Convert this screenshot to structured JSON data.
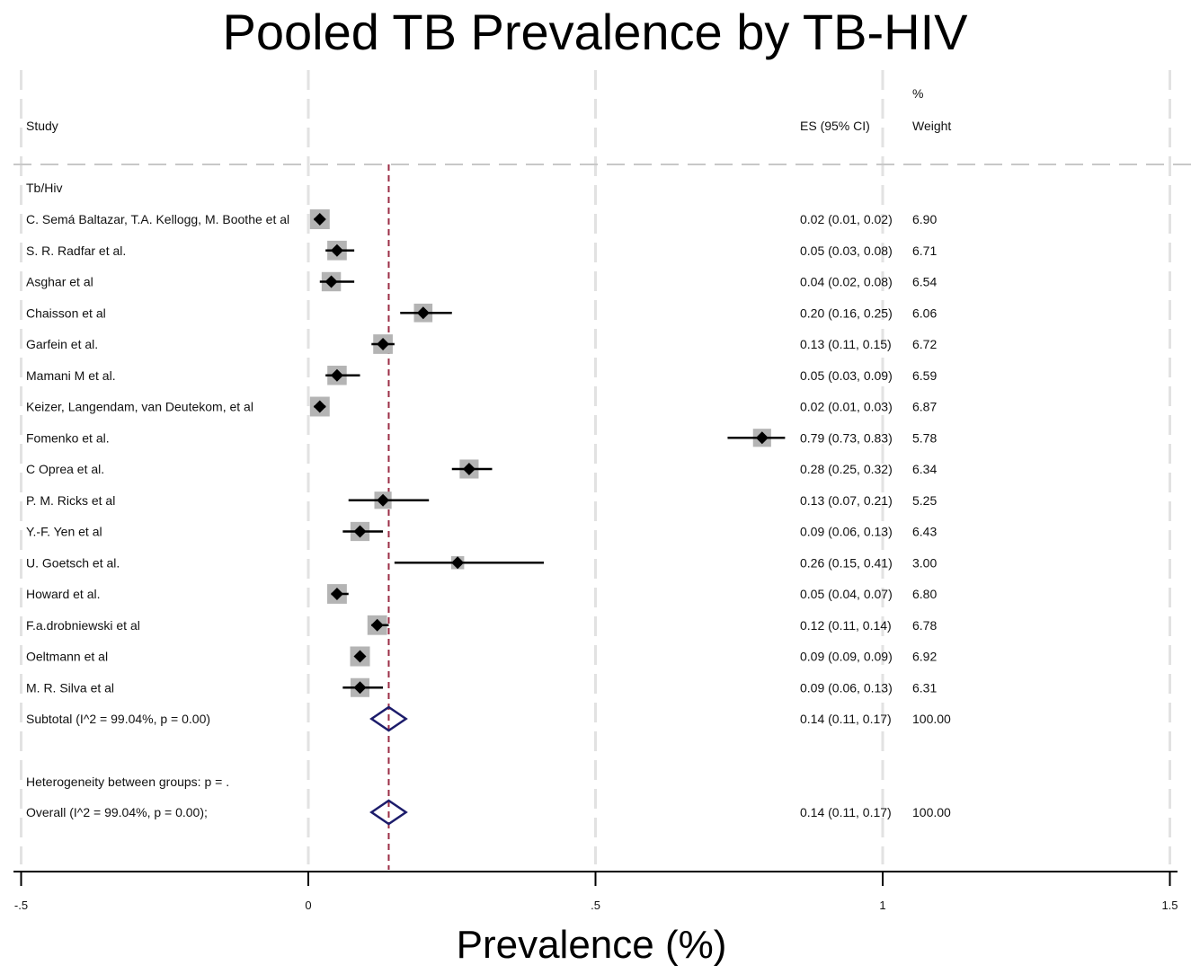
{
  "chart_data": {
    "type": "forest",
    "title": "Pooled TB Prevalence by TB-HIV",
    "xlabel": "Prevalence (%)",
    "xlim": [
      -0.5,
      1.5
    ],
    "xticks": [
      -0.5,
      0,
      0.5,
      1,
      1.5
    ],
    "xtick_labels": [
      "-.5",
      "0",
      ".5",
      "1",
      "1.5"
    ],
    "grid": true,
    "reference_line": 0.14,
    "headers": {
      "study": "Study",
      "es": "ES (95% CI)",
      "pct": "%",
      "weight": "Weight"
    },
    "group_label": "Tb/Hiv",
    "studies": [
      {
        "name": "C. Semá Baltazar, T.A. Kellogg, M. Boothe et al",
        "es": 0.02,
        "lo": 0.01,
        "hi": 0.02,
        "es_text": "0.02 (0.01, 0.02)",
        "weight": "6.90"
      },
      {
        "name": "S. R. Radfar et al.",
        "es": 0.05,
        "lo": 0.03,
        "hi": 0.08,
        "es_text": "0.05 (0.03, 0.08)",
        "weight": "6.71"
      },
      {
        "name": "Asghar et al",
        "es": 0.04,
        "lo": 0.02,
        "hi": 0.08,
        "es_text": "0.04 (0.02, 0.08)",
        "weight": "6.54"
      },
      {
        "name": "Chaisson et al",
        "es": 0.2,
        "lo": 0.16,
        "hi": 0.25,
        "es_text": "0.20 (0.16, 0.25)",
        "weight": "6.06"
      },
      {
        "name": "Garfein et al.",
        "es": 0.13,
        "lo": 0.11,
        "hi": 0.15,
        "es_text": "0.13 (0.11, 0.15)",
        "weight": "6.72"
      },
      {
        "name": "Mamani M et al.",
        "es": 0.05,
        "lo": 0.03,
        "hi": 0.09,
        "es_text": "0.05 (0.03, 0.09)",
        "weight": "6.59"
      },
      {
        "name": "Keizer, Langendam, van Deutekom, et al",
        "es": 0.02,
        "lo": 0.01,
        "hi": 0.03,
        "es_text": "0.02 (0.01, 0.03)",
        "weight": "6.87"
      },
      {
        "name": "Fomenko et al.",
        "es": 0.79,
        "lo": 0.73,
        "hi": 0.83,
        "es_text": "0.79 (0.73, 0.83)",
        "weight": "5.78"
      },
      {
        "name": "C Oprea et al.",
        "es": 0.28,
        "lo": 0.25,
        "hi": 0.32,
        "es_text": "0.28 (0.25, 0.32)",
        "weight": "6.34"
      },
      {
        "name": "P. M. Ricks et al",
        "es": 0.13,
        "lo": 0.07,
        "hi": 0.21,
        "es_text": "0.13 (0.07, 0.21)",
        "weight": "5.25"
      },
      {
        "name": "Y.-F. Yen et al",
        "es": 0.09,
        "lo": 0.06,
        "hi": 0.13,
        "es_text": "0.09 (0.06, 0.13)",
        "weight": "6.43"
      },
      {
        "name": "U. Goetsch et al.",
        "es": 0.26,
        "lo": 0.15,
        "hi": 0.41,
        "es_text": "0.26 (0.15, 0.41)",
        "weight": "3.00"
      },
      {
        "name": "Howard et al.",
        "es": 0.05,
        "lo": 0.04,
        "hi": 0.07,
        "es_text": "0.05 (0.04, 0.07)",
        "weight": "6.80"
      },
      {
        "name": "F.a.drobniewski et al",
        "es": 0.12,
        "lo": 0.11,
        "hi": 0.14,
        "es_text": "0.12 (0.11, 0.14)",
        "weight": "6.78"
      },
      {
        "name": "Oeltmann et al",
        "es": 0.09,
        "lo": 0.09,
        "hi": 0.09,
        "es_text": "0.09 (0.09, 0.09)",
        "weight": "6.92"
      },
      {
        "name": "M. R. Silva et al",
        "es": 0.09,
        "lo": 0.06,
        "hi": 0.13,
        "es_text": "0.09 (0.06, 0.13)",
        "weight": "6.31"
      }
    ],
    "subtotal": {
      "label": "Subtotal  (I^2 = 99.04%, p = 0.00)",
      "es": 0.14,
      "lo": 0.11,
      "hi": 0.17,
      "es_text": "0.14 (0.11, 0.17)",
      "weight": "100.00"
    },
    "heterogeneity": "Heterogeneity between groups: p = .",
    "overall": {
      "label": "Overall  (I^2 = 99.04%, p = 0.00);",
      "es": 0.14,
      "lo": 0.11,
      "hi": 0.17,
      "es_text": "0.14 (0.11, 0.17)",
      "weight": "100.00"
    },
    "colors": {
      "box": "#b4b4b4",
      "marker": "#000000",
      "diamond": "#1c1c6b",
      "refline": "#9b2d45",
      "grid": "#e2e2e2"
    }
  }
}
